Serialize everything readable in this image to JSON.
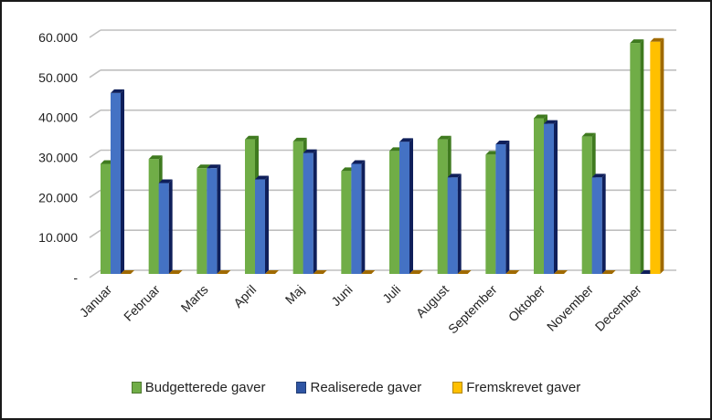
{
  "chart_data": {
    "type": "bar",
    "title": "",
    "xlabel": "",
    "ylabel": "",
    "ylim": [
      0,
      60000
    ],
    "yticks": [
      {
        "value": 0,
        "label": "-"
      },
      {
        "value": 10000,
        "label": "10.000"
      },
      {
        "value": 20000,
        "label": "20.000"
      },
      {
        "value": 30000,
        "label": "30.000"
      },
      {
        "value": 40000,
        "label": "40.000"
      },
      {
        "value": 50000,
        "label": "50.000"
      },
      {
        "value": 60000,
        "label": "60.000"
      }
    ],
    "grid": true,
    "legend_position": "bottom",
    "categories": [
      "Januar",
      "Februar",
      "Marts",
      "April",
      "Maj",
      "Juni",
      "Juli",
      "August",
      "September",
      "Oktober",
      "November",
      "December"
    ],
    "series": [
      {
        "name": "Budgetterede gaver",
        "color": "#70ad47",
        "side": "#3f7a1f",
        "values": [
          27500,
          28700,
          26400,
          33600,
          33100,
          25700,
          30700,
          33600,
          29800,
          38900,
          34300,
          57700
        ]
      },
      {
        "name": "Realiserede gaver",
        "color": "#4472c4",
        "side": "#0f1f5a",
        "values": [
          45200,
          22700,
          26400,
          23600,
          30200,
          27500,
          33000,
          24100,
          32400,
          37500,
          24100,
          0
        ]
      },
      {
        "name": "Fremskrevet gaver",
        "color": "#ffc000",
        "side": "#a06a00",
        "values": [
          0,
          0,
          0,
          0,
          0,
          0,
          0,
          0,
          0,
          0,
          0,
          58000
        ]
      }
    ]
  }
}
